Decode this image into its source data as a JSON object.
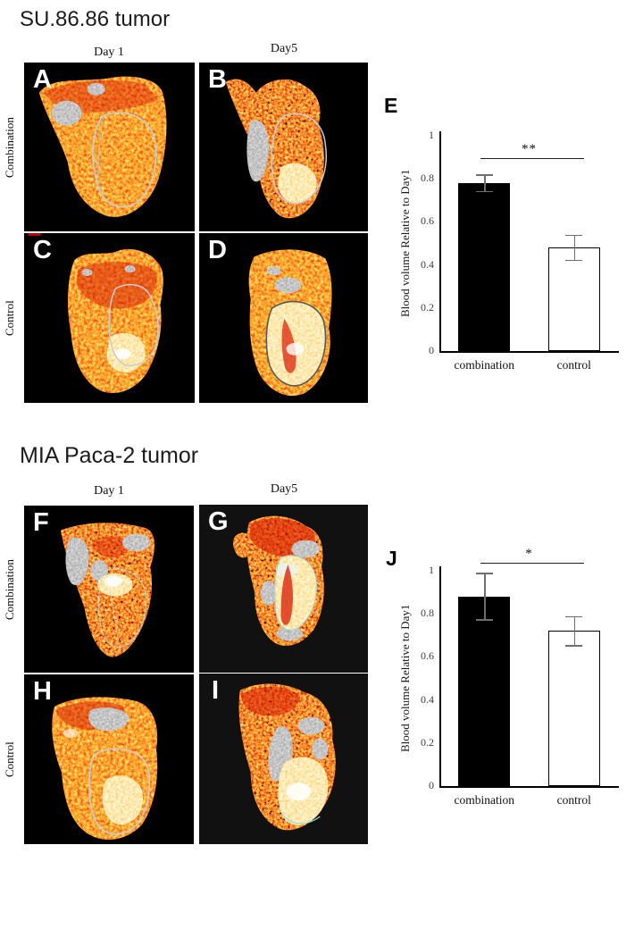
{
  "sections": [
    {
      "title": "SU.86.86 tumor",
      "columns": [
        "Day 1",
        "Day5"
      ],
      "rows": [
        "Combination",
        "Control"
      ],
      "panels": [
        {
          "letter": "A"
        },
        {
          "letter": "B"
        },
        {
          "letter": "C"
        },
        {
          "letter": "D"
        }
      ]
    },
    {
      "title": "MIA Paca-2 tumor",
      "columns": [
        "Day 1",
        "Day5"
      ],
      "rows": [
        "Combination",
        "Control"
      ],
      "panels": [
        {
          "letter": "F"
        },
        {
          "letter": "G"
        },
        {
          "letter": "H"
        },
        {
          "letter": "I"
        }
      ]
    }
  ],
  "chart_data": [
    {
      "panel_label": "E",
      "type": "bar",
      "title": "",
      "categories": [
        "combination",
        "control"
      ],
      "values": [
        0.78,
        0.48
      ],
      "errors": [
        0.04,
        0.06
      ],
      "bar_colors": [
        "#000000",
        "#ffffff"
      ],
      "ylabel": "Blood volume Relative to Day1",
      "xlabel": "",
      "ylim": [
        0,
        1
      ],
      "yticks": [
        "0",
        "0.2",
        "0.4",
        "0.6",
        "0.8",
        "1"
      ],
      "significance": "**",
      "grid": false,
      "legend": "none"
    },
    {
      "panel_label": "J",
      "type": "bar",
      "title": "",
      "categories": [
        "combination",
        "control"
      ],
      "values": [
        0.88,
        0.72
      ],
      "errors": [
        0.11,
        0.07
      ],
      "bar_colors": [
        "#000000",
        "#ffffff"
      ],
      "ylabel": "Blood volume Relative to Day1",
      "xlabel": "",
      "ylim": [
        0,
        1
      ],
      "yticks": [
        "0",
        "0.2",
        "0.4",
        "0.6",
        "0.8",
        "1"
      ],
      "significance": "*",
      "grid": false,
      "legend": "none"
    }
  ]
}
